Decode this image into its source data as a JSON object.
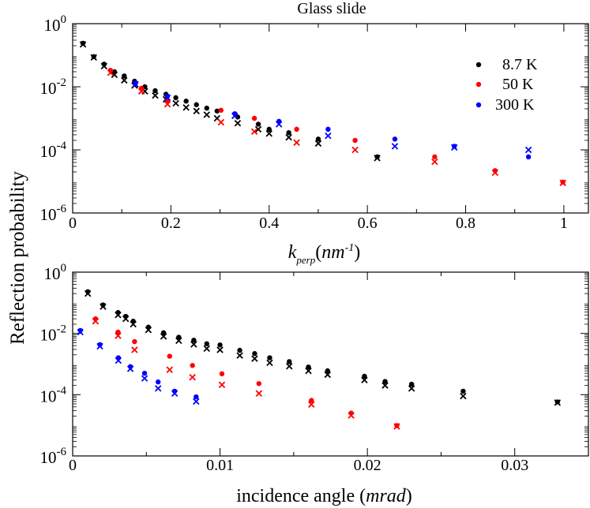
{
  "figure": {
    "title": "Glass slide",
    "shared_ylabel": "Reflection probability"
  },
  "legend": {
    "placement": "top-right of top panel",
    "entries": [
      {
        "label": "8.7 K",
        "color": "#000000"
      },
      {
        "label": "50 K",
        "color": "#ff0000"
      },
      {
        "label": "300 K",
        "color": "#0000ff"
      }
    ]
  },
  "chart_data": [
    {
      "type": "scatter",
      "title": "Glass slide",
      "xlabel": "k_perp (nm^-1)",
      "xlabel_parts": {
        "main": "k",
        "sub": "perp",
        "unit_open": "(",
        "unit": "nm",
        "unit_sup": "-1",
        "unit_close": ")"
      },
      "ylabel": "Reflection probability",
      "xlim": [
        0,
        1.05
      ],
      "ylim": [
        1e-06,
        1
      ],
      "yscale": "log",
      "xticks": [
        0,
        0.2,
        0.4,
        0.6,
        0.8,
        1
      ],
      "xtick_labels": [
        "0",
        "0.2",
        "0.4",
        "0.6",
        "0.8",
        "1"
      ],
      "yticks": [
        1e-06,
        0.0001,
        0.01,
        1
      ],
      "ytick_labels": [
        {
          "base": "10",
          "exp": "-6"
        },
        {
          "base": "10",
          "exp": "-4"
        },
        {
          "base": "10",
          "exp": "-2"
        },
        {
          "base": "10",
          "exp": "0"
        }
      ],
      "series": [
        {
          "name": "8.7 K",
          "color": "#000000",
          "dots": [
            [
              0.021,
              0.24
            ],
            [
              0.043,
              0.09
            ],
            [
              0.064,
              0.052
            ],
            [
              0.085,
              0.03
            ],
            [
              0.105,
              0.022
            ],
            [
              0.126,
              0.015
            ],
            [
              0.147,
              0.01
            ],
            [
              0.168,
              0.0075
            ],
            [
              0.19,
              0.0058
            ],
            [
              0.21,
              0.0045
            ],
            [
              0.231,
              0.0035
            ],
            [
              0.252,
              0.0027
            ],
            [
              0.273,
              0.0021
            ],
            [
              0.294,
              0.0017
            ],
            [
              0.336,
              0.0011
            ],
            [
              0.378,
              0.00065
            ],
            [
              0.4,
              0.00045
            ],
            [
              0.44,
              0.00035
            ],
            [
              0.5,
              0.00022
            ],
            [
              0.62,
              6e-05
            ]
          ],
          "crosses": [
            [
              0.021,
              0.22
            ],
            [
              0.043,
              0.085
            ],
            [
              0.064,
              0.045
            ],
            [
              0.085,
              0.024
            ],
            [
              0.105,
              0.016
            ],
            [
              0.126,
              0.011
            ],
            [
              0.147,
              0.0072
            ],
            [
              0.168,
              0.0053
            ],
            [
              0.19,
              0.004
            ],
            [
              0.21,
              0.003
            ],
            [
              0.231,
              0.0022
            ],
            [
              0.252,
              0.0017
            ],
            [
              0.273,
              0.0013
            ],
            [
              0.294,
              0.001
            ],
            [
              0.336,
              0.0007
            ],
            [
              0.378,
              0.00045
            ],
            [
              0.4,
              0.00033
            ],
            [
              0.44,
              0.00025
            ],
            [
              0.5,
              0.00016
            ],
            [
              0.62,
              5.5e-05
            ]
          ]
        },
        {
          "name": "50 K",
          "color": "#ff0000",
          "dots": [
            [
              0.077,
              0.033
            ],
            [
              0.14,
              0.009
            ],
            [
              0.193,
              0.0035
            ],
            [
              0.302,
              0.0018
            ],
            [
              0.37,
              0.001
            ],
            [
              0.456,
              0.00045
            ],
            [
              0.575,
              0.0002
            ],
            [
              0.737,
              6e-05
            ],
            [
              0.86,
              2.2e-05
            ],
            [
              0.998,
              9.5e-06
            ]
          ],
          "crosses": [
            [
              0.077,
              0.028
            ],
            [
              0.14,
              0.0072
            ],
            [
              0.193,
              0.0028
            ],
            [
              0.302,
              0.00075
            ],
            [
              0.37,
              0.00038
            ],
            [
              0.456,
              0.00017
            ],
            [
              0.575,
              0.0001
            ],
            [
              0.737,
              4.2e-05
            ],
            [
              0.86,
              1.9e-05
            ],
            [
              0.998,
              9e-06
            ]
          ]
        },
        {
          "name": "300 K",
          "color": "#0000ff",
          "dots": [
            [
              0.128,
              0.013
            ],
            [
              0.193,
              0.005
            ],
            [
              0.33,
              0.0014
            ],
            [
              0.42,
              0.0008
            ],
            [
              0.52,
              0.00045
            ],
            [
              0.656,
              0.00022
            ],
            [
              0.777,
              0.00013
            ],
            [
              0.928,
              6e-05
            ]
          ],
          "crosses": [
            [
              0.128,
              0.012
            ],
            [
              0.193,
              0.0045
            ],
            [
              0.33,
              0.0012
            ],
            [
              0.42,
              0.00065
            ],
            [
              0.52,
              0.00028
            ],
            [
              0.656,
              0.00013
            ],
            [
              0.777,
              0.00012
            ],
            [
              0.928,
              0.0001
            ]
          ]
        }
      ]
    },
    {
      "type": "scatter",
      "title": "",
      "xlabel": "incidence angle (mrad)",
      "xlabel_parts": {
        "main": "incidence angle (",
        "unit": "mrad",
        "unit_close": ")"
      },
      "ylabel": "Reflection probability",
      "xlim": [
        0,
        0.035
      ],
      "ylim": [
        1e-06,
        1
      ],
      "yscale": "log",
      "xticks": [
        0,
        0.01,
        0.02,
        0.03
      ],
      "xtick_labels": [
        "0",
        "0.01",
        "0.02",
        "0.03"
      ],
      "yticks": [
        1e-06,
        0.0001,
        0.01,
        1
      ],
      "ytick_labels": [
        {
          "base": "10",
          "exp": "-6"
        },
        {
          "base": "10",
          "exp": "-4"
        },
        {
          "base": "10",
          "exp": "-2"
        },
        {
          "base": "10",
          "exp": "0"
        }
      ],
      "series": [
        {
          "name": "8.7 K",
          "color": "#000000",
          "dots": [
            [
              0.00103,
              0.23
            ],
            [
              0.00206,
              0.085
            ],
            [
              0.00308,
              0.048
            ],
            [
              0.0036,
              0.036
            ],
            [
              0.00411,
              0.025
            ],
            [
              0.00514,
              0.016
            ],
            [
              0.00617,
              0.0105
            ],
            [
              0.0072,
              0.0075
            ],
            [
              0.00822,
              0.006
            ],
            [
              0.0091,
              0.0046
            ],
            [
              0.01,
              0.0042
            ],
            [
              0.01134,
              0.0028
            ],
            [
              0.01235,
              0.0022
            ],
            [
              0.01337,
              0.0016
            ],
            [
              0.0147,
              0.0012
            ],
            [
              0.016,
              0.0008
            ],
            [
              0.0173,
              0.0006
            ],
            [
              0.0198,
              0.0004
            ],
            [
              0.0212,
              0.00027
            ],
            [
              0.023,
              0.00022
            ],
            [
              0.0265,
              0.00013
            ],
            [
              0.0329,
              5.8e-05
            ]
          ],
          "crosses": [
            [
              0.00103,
              0.2
            ],
            [
              0.00206,
              0.075
            ],
            [
              0.00308,
              0.04
            ],
            [
              0.0036,
              0.03
            ],
            [
              0.00411,
              0.02
            ],
            [
              0.00514,
              0.013
            ],
            [
              0.00617,
              0.008
            ],
            [
              0.0072,
              0.0058
            ],
            [
              0.00822,
              0.0044
            ],
            [
              0.0091,
              0.0032
            ],
            [
              0.01,
              0.0029
            ],
            [
              0.01134,
              0.0019
            ],
            [
              0.01235,
              0.0015
            ],
            [
              0.01337,
              0.0011
            ],
            [
              0.0147,
              0.00085
            ],
            [
              0.016,
              0.0006
            ],
            [
              0.0173,
              0.00045
            ],
            [
              0.0198,
              0.0003
            ],
            [
              0.0212,
              0.0002
            ],
            [
              0.023,
              0.00016
            ],
            [
              0.0265,
              9e-05
            ],
            [
              0.0329,
              5.5e-05
            ]
          ]
        },
        {
          "name": "50 K",
          "color": "#ff0000",
          "dots": [
            [
              0.00155,
              0.03
            ],
            [
              0.00308,
              0.011
            ],
            [
              0.0042,
              0.0054
            ],
            [
              0.00658,
              0.0018
            ],
            [
              0.00813,
              0.0009
            ],
            [
              0.01013,
              0.00048
            ],
            [
              0.01264,
              0.00023
            ],
            [
              0.0162,
              6.5e-05
            ],
            [
              0.0189,
              2.5e-05
            ],
            [
              0.022,
              9.8e-06
            ]
          ],
          "crosses": [
            [
              0.00155,
              0.025
            ],
            [
              0.00308,
              0.0084
            ],
            [
              0.0042,
              0.0029
            ],
            [
              0.00658,
              0.00065
            ],
            [
              0.00813,
              0.00037
            ],
            [
              0.01013,
              0.00021
            ],
            [
              0.01264,
              0.00011
            ],
            [
              0.0162,
              4.8e-05
            ],
            [
              0.0189,
              2.1e-05
            ],
            [
              0.022,
              9.2e-06
            ]
          ]
        },
        {
          "name": "300 K",
          "color": "#0000ff",
          "dots": [
            [
              0.00052,
              0.0125
            ],
            [
              0.00185,
              0.0043
            ],
            [
              0.0031,
              0.0016
            ],
            [
              0.00392,
              0.00082
            ],
            [
              0.00488,
              0.0005
            ],
            [
              0.0058,
              0.00026
            ],
            [
              0.00692,
              0.00013
            ],
            [
              0.00838,
              8.5e-05
            ]
          ],
          "crosses": [
            [
              0.00052,
              0.011
            ],
            [
              0.00185,
              0.0038
            ],
            [
              0.0031,
              0.0013
            ],
            [
              0.00392,
              0.0007
            ],
            [
              0.00488,
              0.00034
            ],
            [
              0.0058,
              0.00016
            ],
            [
              0.00692,
              0.00011
            ],
            [
              0.00838,
              6e-05
            ]
          ]
        }
      ]
    }
  ]
}
